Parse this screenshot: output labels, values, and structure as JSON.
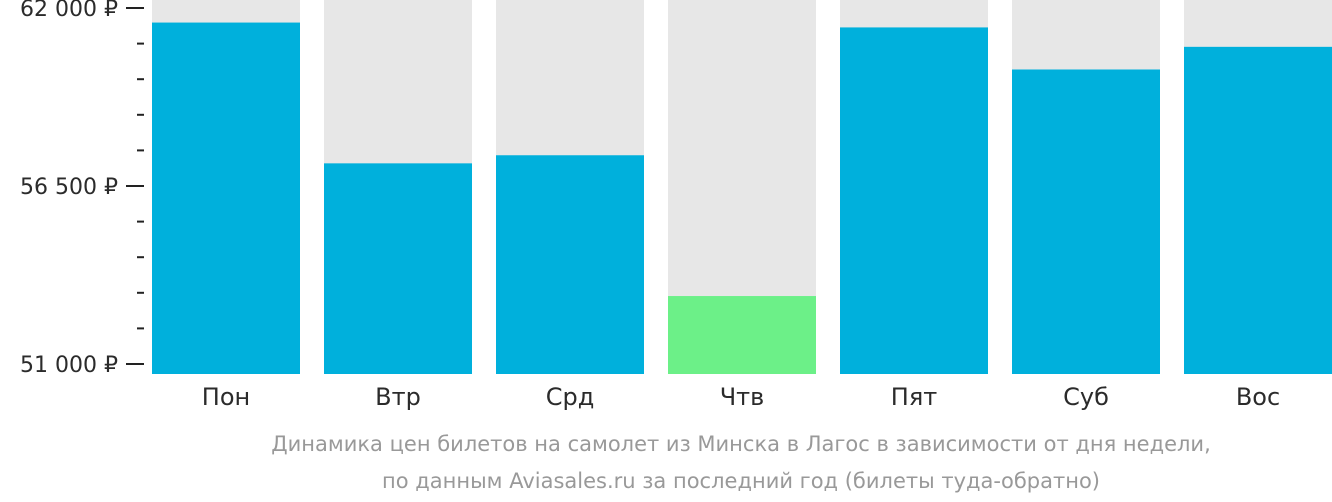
{
  "chart_data": {
    "type": "bar",
    "categories": [
      "Пон",
      "Втр",
      "Срд",
      "Чтв",
      "Пят",
      "Суб",
      "Вос"
    ],
    "values": [
      61550,
      57200,
      57450,
      53100,
      61400,
      60100,
      60800
    ],
    "ylim": [
      51000,
      62000
    ],
    "yticks": [
      {
        "value": 62000,
        "label": "62 000 ₽"
      },
      {
        "value": 56500,
        "label": "56 500 ₽"
      },
      {
        "value": 51000,
        "label": "51 000 ₽"
      }
    ],
    "minor_ytick_values": [
      60900,
      59800,
      58700,
      57600,
      55400,
      54300,
      53200,
      52100
    ],
    "highlight_index": 3,
    "colors": {
      "bar": "#00b0dc",
      "highlight": "#6cf088",
      "track": "#e7e7e7",
      "axis": "#222222",
      "caption": "#999999"
    },
    "caption": [
      "Динамика цен билетов на самолет из Минска в Лагос в зависимости от дня недели,",
      "по данным Aviasales.ru за последний год (билеты туда-обратно)"
    ]
  }
}
